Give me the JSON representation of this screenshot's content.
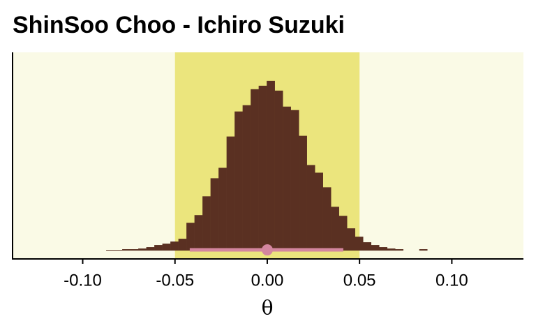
{
  "chart_data": {
    "type": "histogram",
    "title": "ShinSoo Choo - Ichiro Suzuki",
    "x_label": "θ",
    "bins": [
      -0.0873,
      -0.08295,
      -0.0786,
      -0.07425,
      -0.0699,
      -0.06555,
      -0.0612,
      -0.05685,
      -0.0525,
      -0.04815,
      -0.0438,
      -0.03945,
      -0.0351,
      -0.03075,
      -0.0264,
      -0.02205,
      -0.0177,
      -0.01335,
      -0.009,
      -0.00465,
      -0.0003,
      0.00405,
      0.0084,
      0.01275,
      0.0171,
      0.02145,
      0.0258,
      0.03015,
      0.0345,
      0.03885,
      0.0432,
      0.04755,
      0.0519,
      0.05625,
      0.0606,
      0.06495,
      0.0693,
      0.07365,
      0.078,
      0.08235,
      0.0867
    ],
    "counts": [
      1,
      1,
      2,
      2,
      3,
      5,
      8,
      10,
      13,
      17,
      40,
      51,
      78,
      104,
      119,
      164,
      200,
      209,
      232,
      237,
      244,
      230,
      207,
      202,
      165,
      123,
      112,
      91,
      63,
      50,
      32,
      20,
      12,
      8,
      5,
      3,
      2,
      0,
      0,
      2
    ],
    "color": "#5a3022",
    "background": "#fafae6",
    "rope": {
      "lower": -0.05,
      "upper": 0.05,
      "color": "#ebe57d"
    },
    "interval": {
      "point": 0,
      "lower": -0.042,
      "upper": 0.0412,
      "color": "#d4869f"
    },
    "xlim": [
      -0.138,
      0.1388
    ],
    "xticks": [
      {
        "value": -0.1,
        "label": "-0.10"
      },
      -0.05,
      {
        "value": 0,
        "label": "0.00"
      },
      0.05,
      {
        "value": 0.1,
        "label": "0.10"
      }
    ],
    "ylim": [
      -12,
      285
    ]
  }
}
